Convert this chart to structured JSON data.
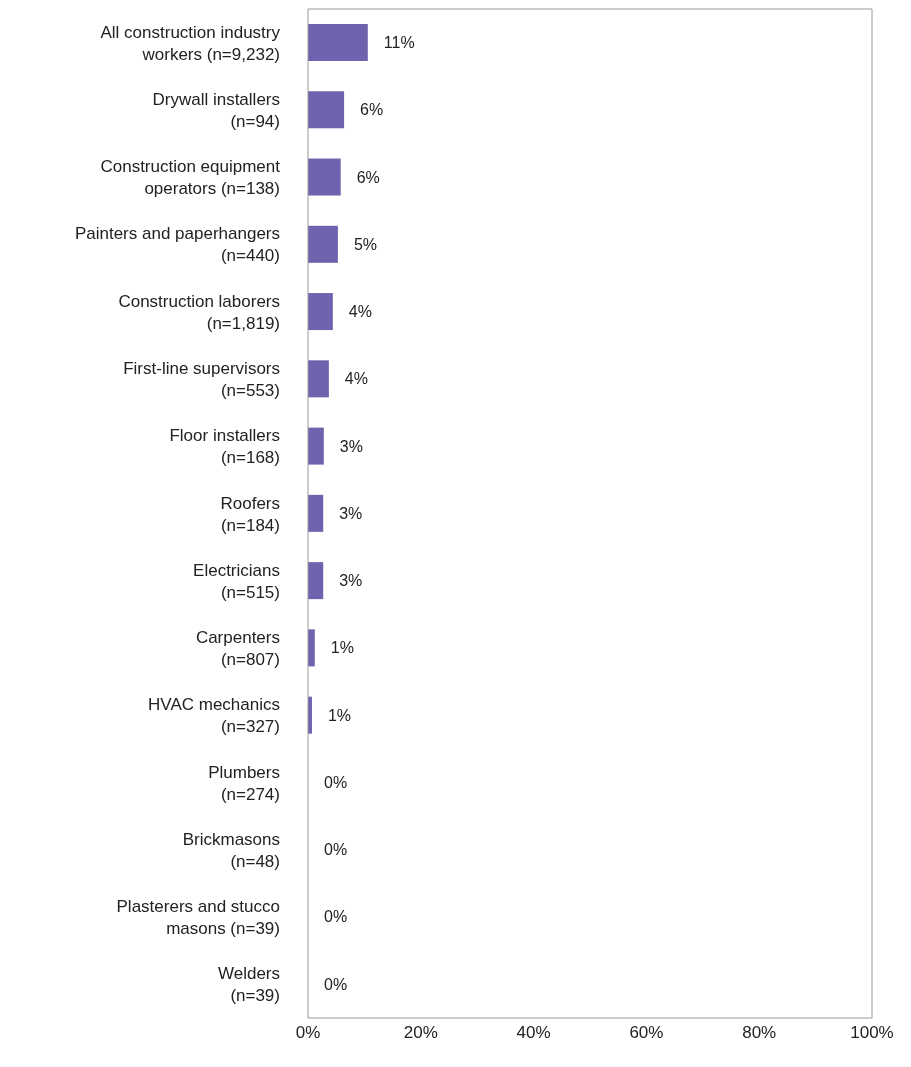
{
  "chart_data": {
    "type": "bar",
    "orientation": "horizontal",
    "categories": [
      "All construction industry workers (n=9,232)",
      "Drywall installers (n=94)",
      "Construction equipment operators (n=138)",
      "Painters and paperhangers (n=440)",
      "Construction laborers (n=1,819)",
      "First-line supervisors (n=553)",
      "Floor installers (n=168)",
      "Roofers (n=184)",
      "Electricians (n=515)",
      "Carpenters (n=807)",
      "HVAC mechanics (n=327)",
      "Plumbers (n=274)",
      "Brickmasons (n=48)",
      "Plasterers and stucco masons (n=39)",
      "Welders (n=39)"
    ],
    "values": [
      10.6,
      6.4,
      5.8,
      5.3,
      4.4,
      3.7,
      2.8,
      2.7,
      2.7,
      1.2,
      0.7,
      0,
      0,
      0,
      0
    ],
    "value_labels": [
      "11%",
      "6%",
      "6%",
      "5%",
      "4%",
      "4%",
      "3%",
      "3%",
      "3%",
      "1%",
      "1%",
      "0%",
      "0%",
      "0%",
      "0%"
    ],
    "color": "#7062ae",
    "xlim": [
      0,
      100
    ],
    "xticks": [
      {
        "value": 0,
        "label": "0%"
      },
      {
        "value": 20,
        "label": "20%"
      },
      {
        "value": 40,
        "label": "40%"
      },
      {
        "value": 60,
        "label": "60%"
      },
      {
        "value": 80,
        "label": "80%"
      },
      {
        "value": 100,
        "label": "100%"
      }
    ],
    "grid": false,
    "legend": false
  }
}
